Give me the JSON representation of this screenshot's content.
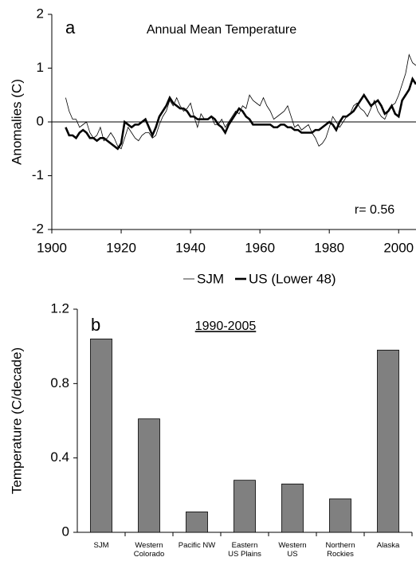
{
  "chart_data": [
    {
      "type": "line",
      "panel": "a",
      "title": "Annual Mean Temperature",
      "y_label": "Anomalies (C)",
      "annotation": "r= 0.56",
      "x": [
        1904,
        1905,
        1906,
        1907,
        1908,
        1909,
        1910,
        1911,
        1912,
        1913,
        1914,
        1915,
        1916,
        1917,
        1918,
        1919,
        1920,
        1921,
        1922,
        1923,
        1924,
        1925,
        1926,
        1927,
        1928,
        1929,
        1930,
        1931,
        1932,
        1933,
        1934,
        1935,
        1936,
        1937,
        1938,
        1939,
        1940,
        1941,
        1942,
        1943,
        1944,
        1945,
        1946,
        1947,
        1948,
        1949,
        1950,
        1951,
        1952,
        1953,
        1954,
        1955,
        1956,
        1957,
        1958,
        1959,
        1960,
        1961,
        1962,
        1963,
        1964,
        1965,
        1966,
        1967,
        1968,
        1969,
        1970,
        1971,
        1972,
        1973,
        1974,
        1975,
        1976,
        1977,
        1978,
        1979,
        1980,
        1981,
        1982,
        1983,
        1984,
        1985,
        1986,
        1987,
        1988,
        1989,
        1990,
        1991,
        1992,
        1993,
        1994,
        1995,
        1996,
        1997,
        1998,
        1999,
        2000,
        2001,
        2002,
        2003,
        2004,
        2005
      ],
      "series": [
        {
          "name": "SJM",
          "color": "#000000",
          "values": [
            0.45,
            0.2,
            0.05,
            0.05,
            -0.1,
            -0.05,
            0.0,
            -0.2,
            -0.3,
            -0.25,
            -0.1,
            -0.35,
            -0.3,
            -0.2,
            -0.3,
            -0.45,
            -0.5,
            -0.3,
            -0.1,
            -0.2,
            -0.3,
            -0.35,
            -0.25,
            -0.2,
            -0.2,
            -0.3,
            -0.25,
            -0.05,
            0.1,
            0.2,
            0.4,
            0.3,
            0.45,
            0.3,
            0.2,
            0.25,
            0.35,
            0.1,
            -0.1,
            0.15,
            0.05,
            0.05,
            0.1,
            -0.05,
            -0.05,
            0.05,
            -0.1,
            0.0,
            0.1,
            0.2,
            0.15,
            0.3,
            0.25,
            0.5,
            0.4,
            0.35,
            0.3,
            0.45,
            0.3,
            0.2,
            0.05,
            0.1,
            0.15,
            0.2,
            0.3,
            0.1,
            -0.1,
            -0.05,
            -0.15,
            -0.1,
            -0.05,
            -0.2,
            -0.3,
            -0.45,
            -0.4,
            -0.3,
            -0.1,
            0.1,
            0.0,
            -0.1,
            0.0,
            0.1,
            0.15,
            0.3,
            0.35,
            0.25,
            0.2,
            0.1,
            0.25,
            0.4,
            0.2,
            0.1,
            0.05,
            0.2,
            0.3,
            0.35,
            0.5,
            0.7,
            0.9,
            1.25,
            1.1,
            1.05
          ]
        },
        {
          "name": "US (Lower 48)",
          "color": "#000000",
          "values": [
            -0.1,
            -0.25,
            -0.25,
            -0.3,
            -0.2,
            -0.15,
            -0.2,
            -0.3,
            -0.3,
            -0.35,
            -0.3,
            -0.3,
            -0.35,
            -0.4,
            -0.45,
            -0.5,
            -0.4,
            0.0,
            -0.05,
            -0.1,
            -0.05,
            -0.05,
            0.0,
            0.05,
            -0.1,
            -0.25,
            -0.1,
            0.1,
            0.2,
            0.3,
            0.45,
            0.35,
            0.3,
            0.25,
            0.25,
            0.2,
            0.1,
            0.1,
            0.05,
            0.05,
            0.05,
            0.05,
            0.1,
            0.05,
            -0.05,
            -0.1,
            -0.2,
            -0.05,
            0.05,
            0.15,
            0.25,
            0.2,
            0.1,
            0.05,
            -0.05,
            -0.05,
            -0.05,
            -0.05,
            -0.05,
            -0.05,
            -0.1,
            -0.1,
            -0.05,
            -0.05,
            -0.1,
            -0.1,
            -0.15,
            -0.15,
            -0.2,
            -0.2,
            -0.2,
            -0.2,
            -0.15,
            -0.15,
            -0.1,
            -0.05,
            0.0,
            -0.05,
            -0.15,
            0.0,
            0.1,
            0.1,
            0.15,
            0.2,
            0.3,
            0.4,
            0.5,
            0.4,
            0.3,
            0.35,
            0.4,
            0.3,
            0.15,
            0.2,
            0.3,
            0.15,
            0.1,
            0.4,
            0.5,
            0.6,
            0.8,
            0.7
          ]
        }
      ],
      "xlim": [
        1900,
        2005
      ],
      "xticks": [
        1900,
        1920,
        1940,
        1960,
        1980,
        2000
      ],
      "ylim": [
        -2,
        2
      ],
      "yticks": [
        -2,
        -1,
        0,
        1,
        2
      ]
    },
    {
      "type": "bar",
      "panel": "b",
      "title": "1990-2005",
      "y_label": "Temperature (C/decade)",
      "categories": [
        "SJM",
        "Western\nColorado",
        "Pacific NW",
        "Eastern\nUS Plains",
        "Western\nUS",
        "Northern\nRockies",
        "Alaska"
      ],
      "values": [
        1.04,
        0.61,
        0.11,
        0.28,
        0.26,
        0.18,
        0.98
      ],
      "color": "#808080",
      "ylim": [
        0,
        1.2
      ],
      "yticks": [
        0,
        0.4,
        0.8,
        1.2
      ]
    }
  ]
}
